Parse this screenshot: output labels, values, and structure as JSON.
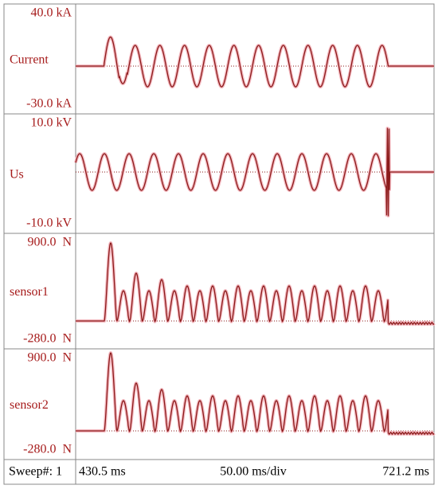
{
  "channels": [
    {
      "top": "40.0 kA",
      "name": "Current",
      "bottom": "-30.0 kA"
    },
    {
      "top": "10.0 kV",
      "name": "Us",
      "bottom": "-10.0 kV"
    },
    {
      "top": "900.0  N",
      "name": "sensor1",
      "bottom": "-280.0  N"
    },
    {
      "top": "900.0  N",
      "name": "sensor2",
      "bottom": "-280.0  N"
    }
  ],
  "footer": {
    "sweep": "Sweep#: 1",
    "start": "430.5 ms",
    "scale": "50.00 ms/div",
    "end": "721.2 ms"
  }
}
